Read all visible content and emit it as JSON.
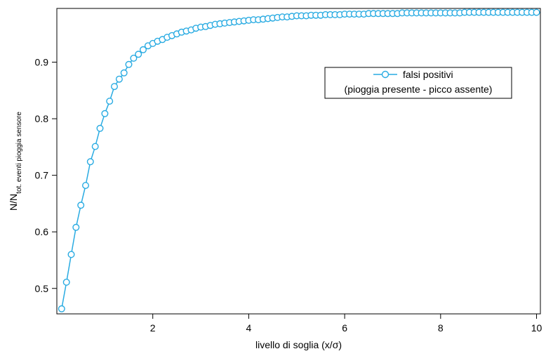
{
  "chart_data": {
    "type": "line",
    "xlabel": "livello di soglia (x/σ)",
    "ylabel": {
      "main": "N/N",
      "subscript": "tot. eventi pioggia sensore"
    },
    "xlim": [
      0,
      10.08
    ],
    "ylim": [
      0.455,
      0.995
    ],
    "xticks": [
      2,
      4,
      6,
      8,
      10
    ],
    "yticks": [
      0.5,
      0.6,
      0.7,
      0.8,
      0.9
    ],
    "grid": false,
    "legend_position": "top-right",
    "color": "#29abe2",
    "series": [
      {
        "name": "falsi positivi",
        "name_line2": "(pioggia presente - picco assente)",
        "marker": "open-circle",
        "x_start": 0.1,
        "x_step": 0.1,
        "values": [
          0.464,
          0.511,
          0.56,
          0.608,
          0.647,
          0.682,
          0.724,
          0.751,
          0.783,
          0.809,
          0.831,
          0.857,
          0.87,
          0.881,
          0.896,
          0.907,
          0.914,
          0.922,
          0.929,
          0.933,
          0.937,
          0.94,
          0.944,
          0.947,
          0.95,
          0.953,
          0.955,
          0.957,
          0.96,
          0.962,
          0.963,
          0.965,
          0.967,
          0.968,
          0.969,
          0.97,
          0.971,
          0.972,
          0.973,
          0.974,
          0.975,
          0.975,
          0.976,
          0.977,
          0.978,
          0.979,
          0.98,
          0.98,
          0.981,
          0.982,
          0.982,
          0.982,
          0.983,
          0.983,
          0.983,
          0.984,
          0.984,
          0.984,
          0.984,
          0.985,
          0.985,
          0.985,
          0.985,
          0.985,
          0.986,
          0.986,
          0.986,
          0.986,
          0.986,
          0.986,
          0.986,
          0.987,
          0.987,
          0.987,
          0.987,
          0.987,
          0.987,
          0.987,
          0.987,
          0.987,
          0.987,
          0.987,
          0.987,
          0.987,
          0.988,
          0.988,
          0.988,
          0.988,
          0.988,
          0.988,
          0.988,
          0.988,
          0.988,
          0.988,
          0.988,
          0.988,
          0.988,
          0.988,
          0.988,
          0.988
        ]
      }
    ]
  }
}
